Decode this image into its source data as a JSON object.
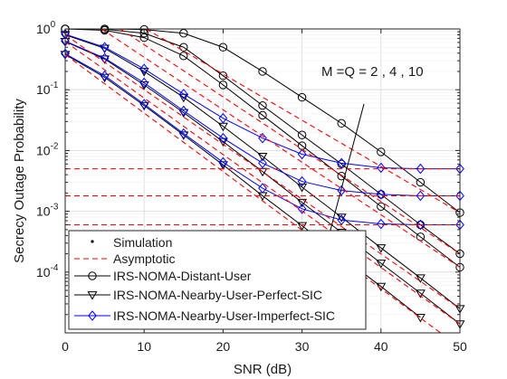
{
  "chart_data": {
    "type": "line",
    "xlabel": "SNR (dB)",
    "ylabel": "Secrecy Outage Probability",
    "xlim": [
      0,
      50
    ],
    "ylim": [
      1e-05,
      1
    ],
    "yscale": "log",
    "grid": true,
    "legend_position": "bottom-left",
    "x_ticks": [
      "0",
      "10",
      "20",
      "30",
      "40",
      "50"
    ],
    "y_ticks": [
      {
        "value": 1,
        "mantissa": "10",
        "exp": "0"
      },
      {
        "value": 0.1,
        "mantissa": "10",
        "exp": "-1"
      },
      {
        "value": 0.01,
        "mantissa": "10",
        "exp": "-2"
      },
      {
        "value": 0.001,
        "mantissa": "10",
        "exp": "-3"
      },
      {
        "value": 0.0001,
        "mantissa": "10",
        "exp": "-4"
      }
    ],
    "annotation": "M =Q = 2 , 4 , 10",
    "x": [
      0,
      5,
      10,
      15,
      20,
      25,
      30,
      35,
      40,
      45,
      50
    ],
    "legend": [
      {
        "name": "Simulation",
        "style": "dot"
      },
      {
        "name": "Asymptotic",
        "style": "dashed-red"
      },
      {
        "name": "IRS-NOMA-Distant-User",
        "style": "circle"
      },
      {
        "name": "IRS-NOMA-Nearby-User-Perfect-SIC",
        "style": "triangle"
      },
      {
        "name": "IRS-NOMA-Nearby-User-Imperfect-SIC",
        "style": "diamond"
      }
    ],
    "series": [
      {
        "group": "distant",
        "marker": "circle",
        "color": "#000000",
        "values": [
          1.0,
          1.0,
          0.98,
          0.85,
          0.5,
          0.2,
          0.075,
          0.028,
          0.0095,
          0.003,
          0.00095
        ]
      },
      {
        "group": "distant",
        "marker": "circle",
        "color": "#000000",
        "values": [
          1.0,
          0.99,
          0.85,
          0.5,
          0.17,
          0.055,
          0.018,
          0.006,
          0.0019,
          0.0006,
          0.0002
        ]
      },
      {
        "group": "distant",
        "marker": "circle",
        "color": "#000000",
        "values": [
          1.0,
          0.95,
          0.72,
          0.36,
          0.12,
          0.038,
          0.012,
          0.0038,
          0.0012,
          0.00038,
          0.00012
        ]
      },
      {
        "group": "perfect",
        "marker": "triangle",
        "color": "#000000",
        "values": [
          0.8,
          0.48,
          0.2,
          0.075,
          0.025,
          0.008,
          0.0025,
          0.0008,
          0.00025,
          8e-05,
          2.5e-05
        ]
      },
      {
        "group": "perfect",
        "marker": "triangle",
        "color": "#000000",
        "values": [
          0.62,
          0.32,
          0.12,
          0.042,
          0.014,
          0.0045,
          0.0014,
          0.00045,
          0.00014,
          4.5e-05,
          1.4e-05
        ]
      },
      {
        "group": "perfect",
        "marker": "triangle",
        "color": "#000000",
        "values": [
          0.38,
          0.16,
          0.055,
          0.018,
          0.0058,
          0.0018,
          0.00058,
          0.00018,
          5.8e-05,
          1.8e-05,
          5.8e-06
        ]
      },
      {
        "group": "imperfect",
        "marker": "diamond",
        "color": "#0000ff",
        "values": [
          0.82,
          0.5,
          0.22,
          0.085,
          0.034,
          0.016,
          0.0087,
          0.0062,
          0.0052,
          0.005,
          0.005
        ]
      },
      {
        "group": "imperfect",
        "marker": "diamond",
        "color": "#0000ff",
        "values": [
          0.63,
          0.33,
          0.13,
          0.045,
          0.016,
          0.0062,
          0.0031,
          0.0022,
          0.0019,
          0.0018,
          0.0018
        ]
      },
      {
        "group": "imperfect",
        "marker": "diamond",
        "color": "#0000ff",
        "values": [
          0.39,
          0.17,
          0.058,
          0.019,
          0.0064,
          0.0024,
          0.0011,
          0.00072,
          0.00062,
          0.0006,
          0.0006
        ]
      }
    ],
    "asymptotic_slopes": [
      {
        "x": [
          0,
          50
        ],
        "values": [
          6.0,
          0.00095
        ]
      },
      {
        "x": [
          0,
          50
        ],
        "values": [
          4.0,
          0.0002
        ]
      },
      {
        "x": [
          0,
          50
        ],
        "values": [
          2.5,
          0.00012
        ]
      },
      {
        "x": [
          0,
          50
        ],
        "values": [
          0.8,
          2.5e-05
        ]
      },
      {
        "x": [
          0,
          50
        ],
        "values": [
          0.62,
          1.4e-05
        ]
      },
      {
        "x": [
          0,
          50
        ],
        "values": [
          0.38,
          5.8e-06
        ]
      }
    ],
    "asymptotic_floors": [
      0.005,
      0.0018,
      0.0006
    ],
    "colors": {
      "simulation": "#000000",
      "asymptotic": "#ff0000",
      "imperfect": "#0000ff",
      "grid": "#d8d8d8"
    }
  }
}
